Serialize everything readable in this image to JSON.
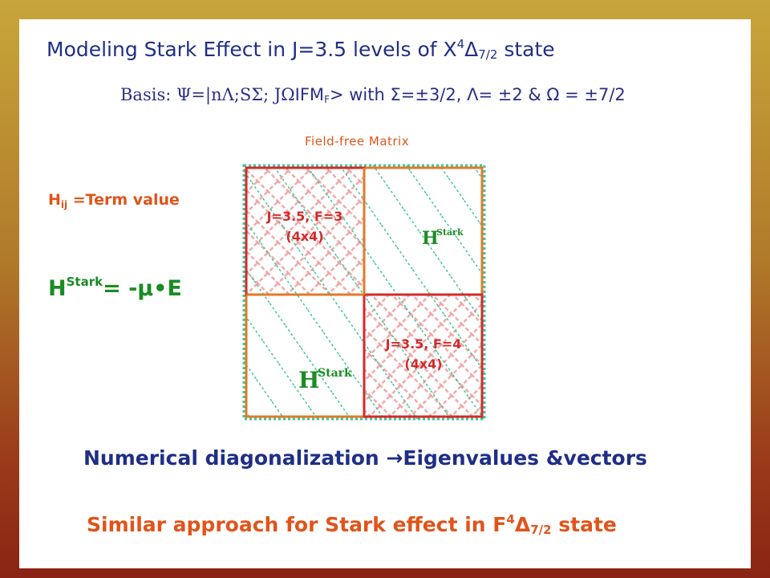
{
  "title": {
    "prefix": "Modeling Stark Effect in  J=3.5 levels of X",
    "sup": "4",
    "sub": "7/2",
    "suffix": " state"
  },
  "basis": {
    "label": "Basis: ",
    "ket_serif": "Ψ=|nΛ;SΣ; JΩ",
    "ket_sans": "IFM",
    "ket_sub": "F",
    "ket_end": "> ",
    "with_text": "with Σ=±3/2, Λ= ±2 & Ω = ±7/2"
  },
  "matrix_label": "Field-free Matrix",
  "term_value": {
    "h": "H",
    "sub": "ij",
    "text": " =Term value"
  },
  "hstark_eq": {
    "h": "H",
    "sup": "Stark",
    "rhs": "= -μ•E"
  },
  "matrix": {
    "block_top_left": {
      "line1": "J=3.5,  F=3",
      "line2": "(4x4)"
    },
    "block_bottom_right": {
      "line1": "J=3.5,  F=4",
      "line2": "(4x4)"
    },
    "offdiag_top_right": {
      "h": "H",
      "sup": "Stark"
    },
    "offdiag_bottom_left": {
      "h": "H",
      "sup": "Stark"
    },
    "colors": {
      "outer_border": "#e07a2a",
      "block_border": "#d42a2a",
      "pink_hatch": "#f0a0a0",
      "green_dots": "#3ec896",
      "block_text": "#d42a2a",
      "offdiag_text": "#1a8c24"
    }
  },
  "numerical": "Numerical diagonalization →Eigenvalues &vectors",
  "similar": {
    "prefix": "Similar approach for Stark effect in F",
    "sup": "4",
    "sub": "7/2",
    "suffix": " state"
  }
}
